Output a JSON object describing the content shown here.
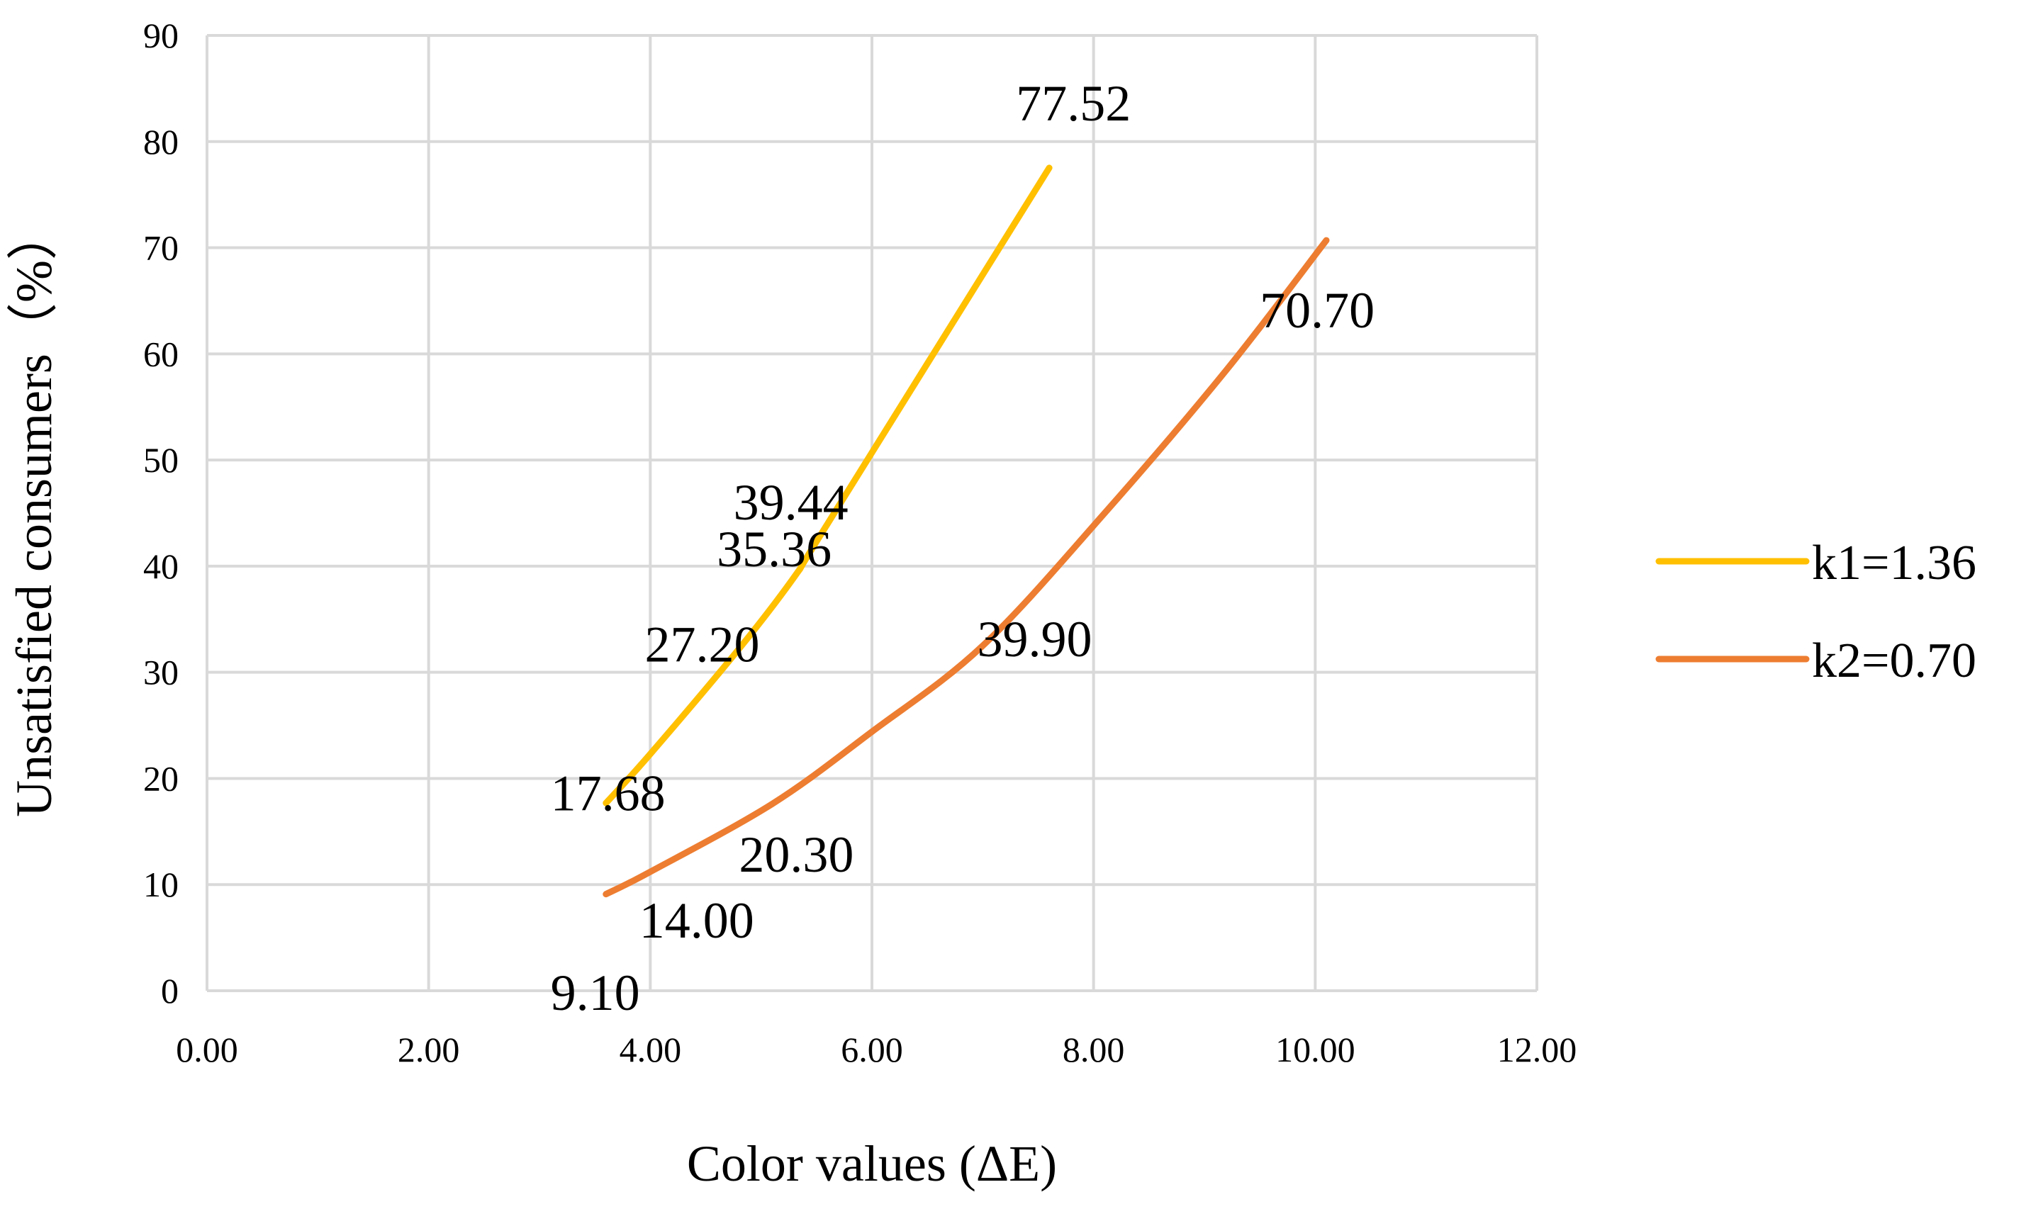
{
  "chart_data": {
    "type": "line",
    "title": "",
    "xlabel": "Color values (ΔE)",
    "ylabel": "Unsatisfied consumers（%）",
    "xlim": [
      0,
      12
    ],
    "ylim": [
      0,
      90
    ],
    "x_ticks": [
      "0.00",
      "2.00",
      "4.00",
      "6.00",
      "8.00",
      "10.00",
      "12.00"
    ],
    "y_ticks": [
      "0",
      "10",
      "20",
      "30",
      "40",
      "50",
      "60",
      "70",
      "80",
      "90"
    ],
    "grid": true,
    "legend_position": "right",
    "series": [
      {
        "name": "k1=1.36",
        "color": "#FFC000",
        "x": [
          3.6,
          4.0,
          4.8,
          5.3,
          5.6,
          7.6
        ],
        "y": [
          17.68,
          22.3,
          32.2,
          39.0,
          44.0,
          77.52
        ],
        "labels": [
          "17.68",
          "27.20",
          "35.36",
          "39.44",
          "77.52"
        ]
      },
      {
        "name": "k2=0.70",
        "color": "#ED7D31",
        "x": [
          3.6,
          4.0,
          5.1,
          6.0,
          7.0,
          8.1,
          9.2,
          10.1
        ],
        "y": [
          9.1,
          11.2,
          17.6,
          24.4,
          32.5,
          45.0,
          58.5,
          70.7
        ],
        "labels": [
          "9.10",
          "14.00",
          "20.30",
          "39.90",
          "70.70"
        ]
      }
    ]
  }
}
